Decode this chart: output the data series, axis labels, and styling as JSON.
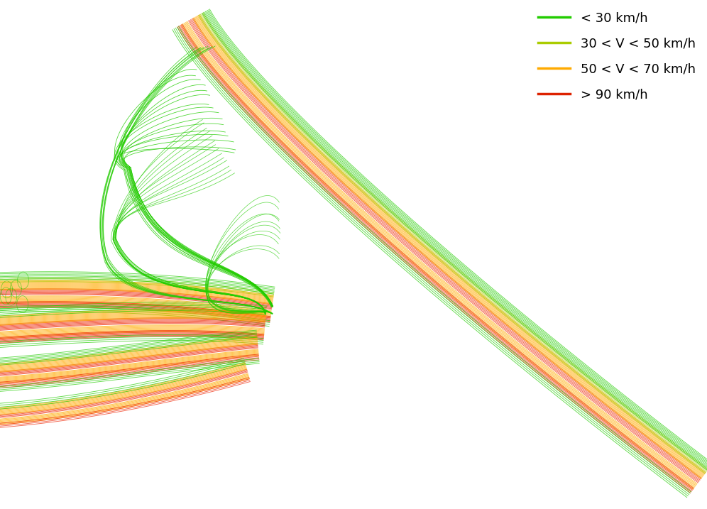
{
  "background_color": "#ffffff",
  "legend_labels": [
    "< 30 km/h",
    "30 < V < 50 km/h",
    "50 < V < 70 km/h",
    "> 90 km/h"
  ],
  "legend_colors": [
    "#22cc00",
    "#aacc00",
    "#ffaa00",
    "#dd2200"
  ],
  "colors": {
    "green": "#22cc00",
    "ygreen": "#aacc00",
    "orange": "#ffaa00",
    "red": "#ee2200"
  },
  "lw": 0.65,
  "alpha": 0.7,
  "xlim": [
    0,
    10
  ],
  "ylim": [
    0,
    7.17
  ],
  "intersection_x": 3.85,
  "intersection_y": 2.75
}
